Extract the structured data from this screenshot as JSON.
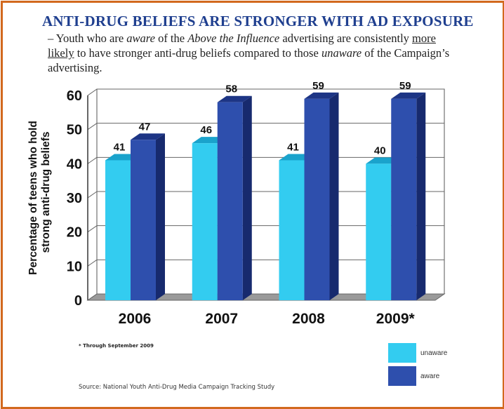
{
  "header": {
    "title": "ANTI-DRUG BELIEFS ARE STRONGER WITH AD EXPOSURE",
    "sub_dash": "– Youth who are ",
    "sub_aware": "aware",
    "sub_mid1": " of the ",
    "sub_campaign": "Above the Influence",
    "sub_mid2": " advertising are consistently ",
    "sub_more": "more",
    "sub_likely": "likely",
    "sub_mid3": " to have stronger  anti-drug beliefs compared to those ",
    "sub_unaware": "unaware",
    "sub_end": " of the Campaign’s advertising."
  },
  "footnote": "* Through September 2009",
  "source": "Source: National Youth Anti-Drug Media Campaign Tracking Study",
  "colors": {
    "unaware_front": "#33ccf0",
    "unaware_top": "#1aa3cc",
    "unaware_side": "#1690b5",
    "aware_front": "#2e4fad",
    "aware_top": "#1d3585",
    "aware_side": "#172a6e",
    "floor": "#9a9a9a",
    "border": "#d2691e",
    "title": "#1f3f8f"
  },
  "chart_data": {
    "type": "bar",
    "categories": [
      "2006",
      "2007",
      "2008",
      "2009*"
    ],
    "series": [
      {
        "name": "unaware",
        "values": [
          41,
          46,
          41,
          40
        ]
      },
      {
        "name": "aware",
        "values": [
          47,
          58,
          59,
          59
        ]
      }
    ],
    "data_labels": [
      [
        "41",
        "46",
        "41",
        "40"
      ],
      [
        "47",
        "58",
        "59",
        "59"
      ]
    ],
    "ylabel": "Percentage of teens who hold strong anti-drug beliefs",
    "ylim": [
      0,
      60
    ],
    "yticks": [
      "0",
      "10",
      "20",
      "30",
      "40",
      "50",
      "60"
    ],
    "grid": true,
    "legend_position": "bottom-right",
    "three_d": true
  }
}
